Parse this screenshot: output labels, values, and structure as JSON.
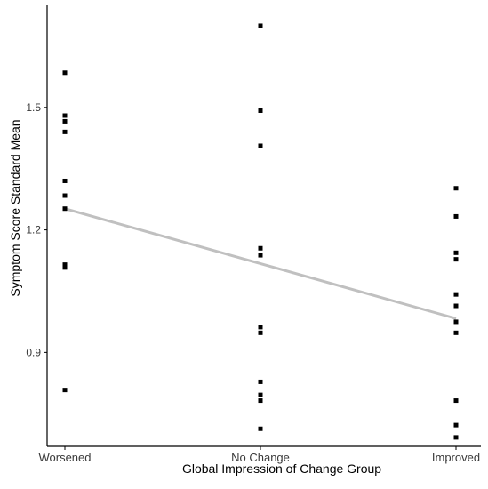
{
  "chart_data": {
    "type": "scatter",
    "xlabel": "Global Impression of Change Group",
    "ylabel": "Symptom Score Standard Mean",
    "categories": [
      "Worsened",
      "No Change",
      "Improved"
    ],
    "ylim": [
      0.67,
      1.75
    ],
    "yticks": [
      0.9,
      1.2,
      1.5
    ],
    "ytick_labels": [
      "0.9",
      "1.2",
      "1.5"
    ],
    "grid": false,
    "points": [
      {
        "x": "Worsened",
        "y": 1.585
      },
      {
        "x": "Worsened",
        "y": 1.48
      },
      {
        "x": "Worsened",
        "y": 1.466
      },
      {
        "x": "Worsened",
        "y": 1.44
      },
      {
        "x": "Worsened",
        "y": 1.32
      },
      {
        "x": "Worsened",
        "y": 1.284
      },
      {
        "x": "Worsened",
        "y": 1.252
      },
      {
        "x": "Worsened",
        "y": 1.115
      },
      {
        "x": "Worsened",
        "y": 1.108
      },
      {
        "x": "Worsened",
        "y": 0.808
      },
      {
        "x": "No Change",
        "y": 1.7
      },
      {
        "x": "No Change",
        "y": 1.492
      },
      {
        "x": "No Change",
        "y": 1.406
      },
      {
        "x": "No Change",
        "y": 1.155
      },
      {
        "x": "No Change",
        "y": 1.138
      },
      {
        "x": "No Change",
        "y": 0.962
      },
      {
        "x": "No Change",
        "y": 0.948
      },
      {
        "x": "No Change",
        "y": 0.828
      },
      {
        "x": "No Change",
        "y": 0.796
      },
      {
        "x": "No Change",
        "y": 0.782
      },
      {
        "x": "No Change",
        "y": 0.713
      },
      {
        "x": "Improved",
        "y": 1.302
      },
      {
        "x": "Improved",
        "y": 1.233
      },
      {
        "x": "Improved",
        "y": 1.144
      },
      {
        "x": "Improved",
        "y": 1.128
      },
      {
        "x": "Improved",
        "y": 1.042
      },
      {
        "x": "Improved",
        "y": 1.014
      },
      {
        "x": "Improved",
        "y": 0.975
      },
      {
        "x": "Improved",
        "y": 0.948
      },
      {
        "x": "Improved",
        "y": 0.782
      },
      {
        "x": "Improved",
        "y": 0.722
      },
      {
        "x": "Improved",
        "y": 0.692
      }
    ],
    "trend_line": {
      "y_start": 1.252,
      "y_end": 0.983,
      "color": "#c0c0c0"
    },
    "point_color": "#000000",
    "axis_color": "#000000"
  }
}
